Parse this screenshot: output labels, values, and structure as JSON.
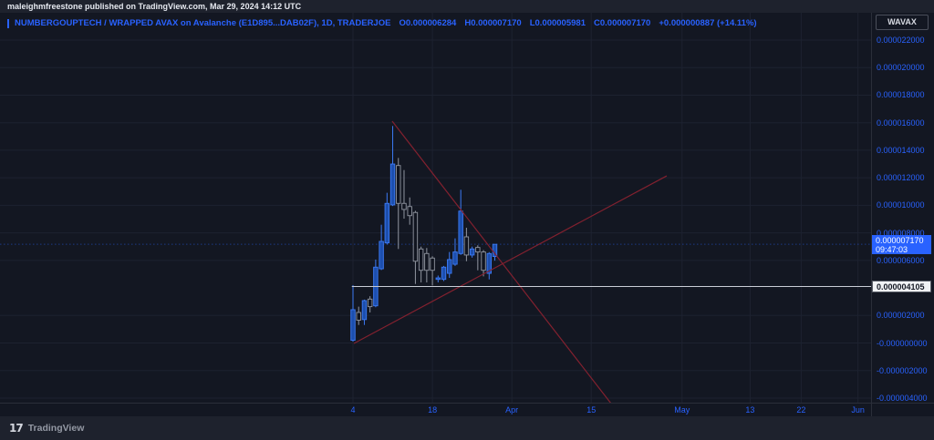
{
  "top_bar": {
    "publish_text": "maleighmfreestone published on TradingView.com, Mar 29, 2024 14:12 UTC"
  },
  "legend": {
    "symbol_line": "NUMBERGOUPTECH / WRAPPED AVAX on Avalanche (E1D895...DAB02F), 1D, TRADERJOE",
    "o_label": "O",
    "o_value": "0.000006284",
    "h_label": "H",
    "h_value": "0.000007170",
    "l_label": "L",
    "l_value": "0.000005981",
    "c_label": "C",
    "c_value": "0.000007170",
    "change": "+0.000000887 (+14.11%)"
  },
  "price_axis": {
    "instrument_badge": "WAVAX",
    "labels": [
      {
        "text": "0.000022000",
        "value": 22
      },
      {
        "text": "0.000020000",
        "value": 20
      },
      {
        "text": "0.000018000",
        "value": 18
      },
      {
        "text": "0.000016000",
        "value": 16
      },
      {
        "text": "0.000014000",
        "value": 14
      },
      {
        "text": "0.000012000",
        "value": 12
      },
      {
        "text": "0.000010000",
        "value": 10
      },
      {
        "text": "0.000008000",
        "value": 8
      },
      {
        "text": "0.000006000",
        "value": 6
      },
      {
        "text": "0.000002000",
        "value": 2
      },
      {
        "text": "-0.000000000",
        "value": 0
      },
      {
        "text": "-0.000002000",
        "value": -2
      },
      {
        "text": "-0.000004000",
        "value": -4
      }
    ],
    "current_price_badge": {
      "price": "0.000007170",
      "time": "09:47:03",
      "value": 7.17
    },
    "level_badge": {
      "text": "0.000004105",
      "value": 4.105
    }
  },
  "time_axis": {
    "labels": [
      {
        "text": "4",
        "day": 0
      },
      {
        "text": "18",
        "day": 14
      },
      {
        "text": "Apr",
        "day": 28
      },
      {
        "text": "15",
        "day": 42
      },
      {
        "text": "May",
        "day": 58
      },
      {
        "text": "13",
        "day": 70
      },
      {
        "text": "22",
        "day": 79
      },
      {
        "text": "Jun",
        "day": 89
      }
    ]
  },
  "bottom_bar": {
    "logo_glyph": "17",
    "brand": "TradingView"
  },
  "chart_data": {
    "type": "candlestick",
    "title": "NUMBERGOUPTECH / WRAPPED AVAX on Avalanche",
    "interval": "1D",
    "exchange": "TRADERJOE",
    "price_unit": "1e-6 WAVAX",
    "ylim": [
      -4.3,
      24
    ],
    "grid": true,
    "candles": [
      {
        "o": 0.2,
        "h": 4.2,
        "l": 0.1,
        "c": 2.42
      },
      {
        "o": 2.22,
        "h": 2.64,
        "l": 1.31,
        "c": 1.66
      },
      {
        "o": 1.7,
        "h": 3.15,
        "l": 1.31,
        "c": 3.08
      },
      {
        "o": 3.19,
        "h": 3.4,
        "l": 2.22,
        "c": 2.64
      },
      {
        "o": 2.7,
        "h": 6.06,
        "l": 2.6,
        "c": 5.51
      },
      {
        "o": 5.39,
        "h": 8.59,
        "l": 5.3,
        "c": 7.38
      },
      {
        "o": 7.27,
        "h": 10.91,
        "l": 7.16,
        "c": 10.14
      },
      {
        "o": 10.03,
        "h": 15.76,
        "l": 9.95,
        "c": 13.0
      },
      {
        "o": 12.89,
        "h": 13.44,
        "l": 6.83,
        "c": 10.14
      },
      {
        "o": 10.14,
        "h": 12.56,
        "l": 9.03,
        "c": 9.7
      },
      {
        "o": 9.91,
        "h": 10.57,
        "l": 8.59,
        "c": 9.25
      },
      {
        "o": 9.48,
        "h": 9.6,
        "l": 4.29,
        "c": 5.94
      },
      {
        "o": 6.83,
        "h": 7.0,
        "l": 4.4,
        "c": 5.28
      },
      {
        "o": 6.5,
        "h": 6.9,
        "l": 4.4,
        "c": 5.28
      },
      {
        "o": 6.17,
        "h": 6.3,
        "l": 4.18,
        "c": 5.28
      },
      {
        "o": 4.62,
        "h": 4.9,
        "l": 4.4,
        "c": 4.73
      },
      {
        "o": 4.62,
        "h": 5.6,
        "l": 4.5,
        "c": 5.51
      },
      {
        "o": 5.06,
        "h": 6.61,
        "l": 4.73,
        "c": 6.06
      },
      {
        "o": 5.72,
        "h": 7.6,
        "l": 5.6,
        "c": 6.61
      },
      {
        "o": 6.5,
        "h": 11.13,
        "l": 6.4,
        "c": 9.58
      },
      {
        "o": 7.71,
        "h": 8.37,
        "l": 5.94,
        "c": 6.39
      },
      {
        "o": 6.39,
        "h": 7.0,
        "l": 6.2,
        "c": 6.83
      },
      {
        "o": 6.94,
        "h": 7.1,
        "l": 5.28,
        "c": 6.61
      },
      {
        "o": 6.61,
        "h": 6.75,
        "l": 4.84,
        "c": 5.28
      },
      {
        "o": 5.06,
        "h": 6.6,
        "l": 4.62,
        "c": 6.5
      },
      {
        "o": 6.284,
        "h": 7.17,
        "l": 5.981,
        "c": 7.17
      }
    ],
    "trendlines": [
      {
        "from_day": 6.91,
        "from_price": 16.11,
        "to_day": 45.5,
        "to_price": -4.4
      },
      {
        "from_day": 0.16,
        "from_price": -0.03,
        "to_day": 55.3,
        "to_price": 12.14
      }
    ],
    "horizontal_line": {
      "price": 4.105,
      "from_day": -0.2
    },
    "current_price_line": {
      "price": 7.17
    },
    "colors": {
      "accent": "#2962ff",
      "up_fill": "#1d4fae",
      "up_border": "#3c7bf6",
      "down_fill": "#10141f",
      "down_border": "#9196a1",
      "trendline": "#83212f",
      "level_line": "#c9cdd6",
      "grid": "#1d2230",
      "background": "#131722"
    }
  }
}
